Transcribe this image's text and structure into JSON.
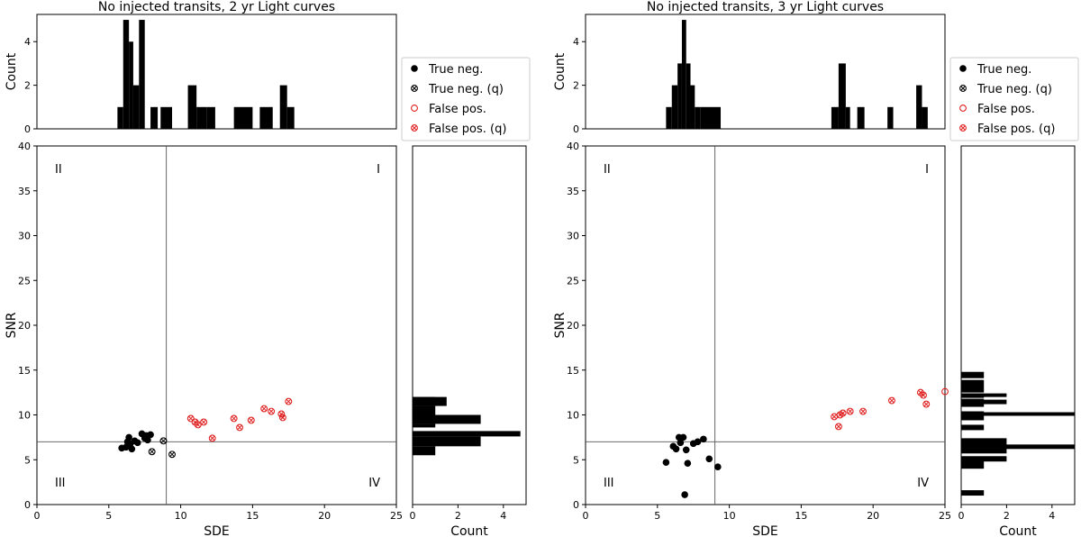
{
  "chart_data": [
    {
      "type": "scatter",
      "title": "No injected transits, 2 yr Light curves",
      "xlabel": "SDE",
      "ylabel": "SNR",
      "xlim": [
        0,
        25
      ],
      "ylim": [
        0,
        40
      ],
      "xticks": [
        0,
        5,
        10,
        15,
        20,
        25
      ],
      "yticks": [
        0,
        5,
        10,
        15,
        20,
        25,
        30,
        35,
        40
      ],
      "threshold_sde": 9,
      "threshold_snr": 7,
      "quadrants": {
        "q1": "I",
        "q2": "II",
        "q3": "III",
        "q4": "IV"
      },
      "series": [
        {
          "name": "True neg.",
          "marker": "filled",
          "color": "#000000",
          "points": [
            [
              5.9,
              6.3
            ],
            [
              6.2,
              6.4
            ],
            [
              6.3,
              7.0
            ],
            [
              6.4,
              7.5
            ],
            [
              6.5,
              6.8
            ],
            [
              6.6,
              6.2
            ],
            [
              6.8,
              7.1
            ],
            [
              7.0,
              6.9
            ],
            [
              7.3,
              7.9
            ],
            [
              7.5,
              7.4
            ],
            [
              7.6,
              7.7
            ],
            [
              7.7,
              7.2
            ],
            [
              7.9,
              7.8
            ]
          ]
        },
        {
          "name": "True neg. (q)",
          "marker": "cross",
          "color": "#000000",
          "points": [
            [
              8.0,
              5.9
            ],
            [
              8.8,
              7.1
            ],
            [
              9.4,
              5.6
            ]
          ]
        },
        {
          "name": "False pos.",
          "marker": "open",
          "color": "#e02020",
          "points": []
        },
        {
          "name": "False pos. (q)",
          "marker": "cross",
          "color": "#e02020",
          "points": [
            [
              10.7,
              9.6
            ],
            [
              11.0,
              9.2
            ],
            [
              11.2,
              8.9
            ],
            [
              11.6,
              9.2
            ],
            [
              12.2,
              7.4
            ],
            [
              13.7,
              9.6
            ],
            [
              14.1,
              8.6
            ],
            [
              14.9,
              9.4
            ],
            [
              15.8,
              10.7
            ],
            [
              16.3,
              10.4
            ],
            [
              17.0,
              10.1
            ],
            [
              17.1,
              9.7
            ],
            [
              17.5,
              11.5
            ]
          ]
        }
      ],
      "top_hist": {
        "ylabel": "Count",
        "ylim": [
          0,
          5.25
        ],
        "yticks": [
          0,
          2,
          4
        ],
        "bins": [
          [
            5.6,
            6.0,
            1
          ],
          [
            6.0,
            6.4,
            5
          ],
          [
            6.4,
            6.7,
            4
          ],
          [
            6.7,
            7.1,
            2
          ],
          [
            7.1,
            7.5,
            5
          ],
          [
            7.9,
            8.4,
            1
          ],
          [
            8.6,
            9.4,
            1
          ],
          [
            10.5,
            11.1,
            2
          ],
          [
            11.1,
            11.8,
            1
          ],
          [
            11.8,
            12.4,
            1
          ],
          [
            13.7,
            15.0,
            1
          ],
          [
            15.5,
            16.4,
            1
          ],
          [
            16.9,
            17.4,
            2
          ],
          [
            17.4,
            17.9,
            1
          ]
        ]
      },
      "right_hist": {
        "xlabel": "Count",
        "xlim": [
          0,
          5.0
        ],
        "xticks": [
          0,
          2,
          4
        ],
        "bins": [
          [
            5.5,
            6.5,
            1
          ],
          [
            6.5,
            7.6,
            3
          ],
          [
            7.6,
            8.2,
            4.75
          ],
          [
            8.6,
            9.0,
            1
          ],
          [
            9.0,
            10.0,
            3
          ],
          [
            10.0,
            11.0,
            1
          ],
          [
            11.0,
            12.0,
            1.5
          ],
          [
            11.6,
            12.0,
            1
          ]
        ]
      }
    },
    {
      "type": "scatter",
      "title": "No injected transits, 3 yr Light curves",
      "xlabel": "SDE",
      "ylabel": "SNR",
      "xlim": [
        0,
        25
      ],
      "ylim": [
        0,
        40
      ],
      "xticks": [
        0,
        5,
        10,
        15,
        20,
        25
      ],
      "yticks": [
        0,
        5,
        10,
        15,
        20,
        25,
        30,
        35,
        40
      ],
      "threshold_sde": 9,
      "threshold_snr": 7,
      "quadrants": {
        "q1": "I",
        "q2": "II",
        "q3": "III",
        "q4": "IV"
      },
      "series": [
        {
          "name": "True neg.",
          "marker": "filled",
          "color": "#000000",
          "points": [
            [
              5.6,
              4.7
            ],
            [
              6.1,
              6.5
            ],
            [
              6.3,
              6.2
            ],
            [
              6.5,
              7.5
            ],
            [
              6.6,
              6.9
            ],
            [
              6.8,
              7.5
            ],
            [
              6.9,
              1.1
            ],
            [
              7.0,
              6.1
            ],
            [
              7.1,
              4.6
            ],
            [
              7.5,
              6.8
            ],
            [
              7.8,
              7.0
            ],
            [
              8.2,
              7.3
            ],
            [
              8.6,
              5.1
            ],
            [
              9.2,
              4.2
            ]
          ]
        },
        {
          "name": "True neg. (q)",
          "marker": "cross",
          "color": "#000000",
          "points": []
        },
        {
          "name": "False pos.",
          "marker": "open",
          "color": "#e02020",
          "points": [
            [
              25.0,
              12.6
            ]
          ]
        },
        {
          "name": "False pos. (q)",
          "marker": "cross",
          "color": "#e02020",
          "points": [
            [
              17.3,
              9.8
            ],
            [
              17.6,
              8.7
            ],
            [
              17.7,
              10.0
            ],
            [
              17.9,
              10.2
            ],
            [
              18.4,
              10.4
            ],
            [
              19.3,
              10.4
            ],
            [
              21.3,
              11.6
            ],
            [
              23.3,
              12.5
            ],
            [
              23.5,
              12.2
            ],
            [
              23.7,
              11.2
            ]
          ]
        }
      ],
      "top_hist": {
        "ylabel": "Count",
        "ylim": [
          0,
          5.25
        ],
        "yticks": [
          0,
          2,
          4
        ],
        "bins": [
          [
            5.6,
            6.0,
            1
          ],
          [
            6.0,
            6.4,
            2
          ],
          [
            6.4,
            6.7,
            3
          ],
          [
            6.7,
            7.0,
            5
          ],
          [
            7.0,
            7.3,
            3
          ],
          [
            7.3,
            7.6,
            2
          ],
          [
            7.6,
            8.0,
            1
          ],
          [
            8.0,
            9.4,
            1
          ],
          [
            17.1,
            17.6,
            1
          ],
          [
            17.6,
            18.1,
            3
          ],
          [
            18.1,
            18.4,
            1
          ],
          [
            18.9,
            19.4,
            1
          ],
          [
            21.0,
            21.4,
            1
          ],
          [
            23.0,
            23.4,
            2
          ],
          [
            23.4,
            23.8,
            1
          ]
        ]
      },
      "right_hist": {
        "xlabel": "Count",
        "xlim": [
          0,
          5.0
        ],
        "xticks": [
          0,
          2,
          4
        ],
        "bins": [
          [
            1.0,
            1.6,
            1
          ],
          [
            4.0,
            5.0,
            1
          ],
          [
            4.8,
            5.4,
            2
          ],
          [
            5.7,
            7.4,
            2
          ],
          [
            6.2,
            6.7,
            5
          ],
          [
            8.3,
            8.9,
            1
          ],
          [
            9.4,
            10.4,
            1
          ],
          [
            9.9,
            10.3,
            5
          ],
          [
            10.9,
            11.8,
            1
          ],
          [
            11.2,
            11.7,
            2
          ],
          [
            11.9,
            12.4,
            1
          ],
          [
            12.0,
            12.4,
            2
          ],
          [
            12.5,
            13.9,
            1
          ],
          [
            14.1,
            14.8,
            1
          ]
        ]
      }
    }
  ],
  "legend": {
    "entries": [
      {
        "label": "True neg.",
        "marker": "filled",
        "color": "#000000"
      },
      {
        "label": "True neg. (q)",
        "marker": "cross",
        "color": "#000000"
      },
      {
        "label": "False pos.",
        "marker": "open",
        "color": "#e02020"
      },
      {
        "label": "False pos. (q)",
        "marker": "cross",
        "color": "#e02020"
      }
    ]
  }
}
